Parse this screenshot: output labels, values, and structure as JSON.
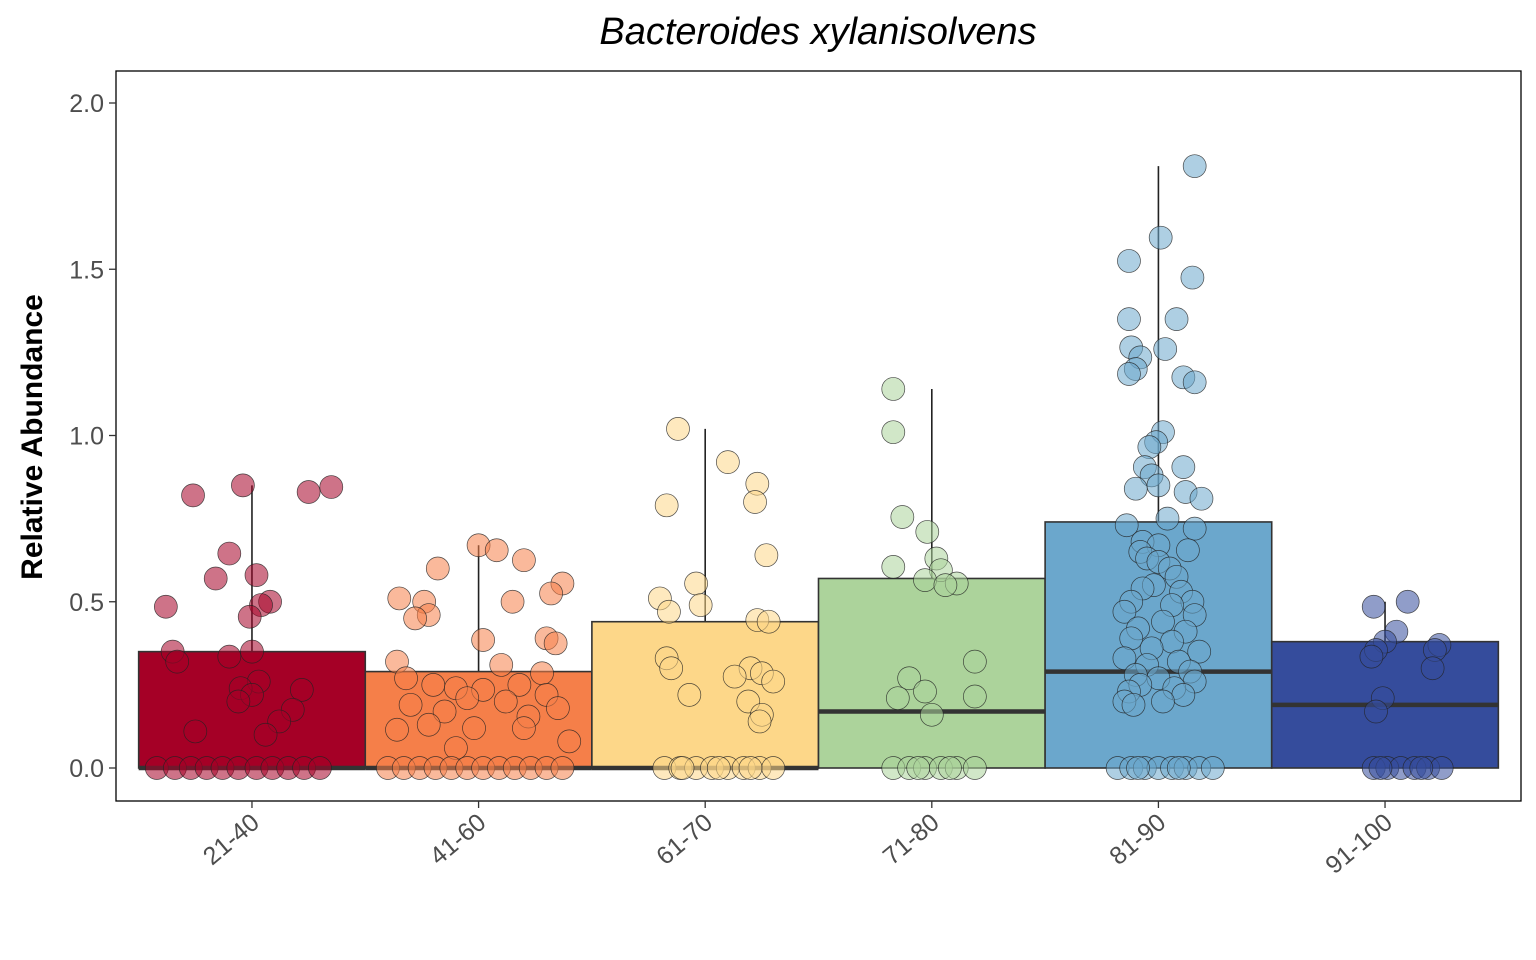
{
  "chart_data": {
    "type": "box",
    "title": "Bacteroides xylanisolvens",
    "xlabel": "",
    "ylabel": "Relative Abundance",
    "ylim": [
      -0.1,
      2.1
    ],
    "yticks": [
      "0.0",
      "0.5",
      "1.0",
      "1.5",
      "2.0"
    ],
    "categories": [
      "21-40",
      "41-60",
      "61-70",
      "71-80",
      "81-90",
      "91-100"
    ],
    "colors": [
      "#a50026",
      "#f57f49",
      "#fdd789",
      "#acd39b",
      "#6ba7cc",
      "#354c9c"
    ],
    "boxes": [
      {
        "q1": 0.0,
        "median": 0.0,
        "q3": 0.35,
        "whisker_low": 0.0,
        "whisker_high": 0.85
      },
      {
        "q1": 0.0,
        "median": 0.0,
        "q3": 0.29,
        "whisker_low": 0.0,
        "whisker_high": 0.67
      },
      {
        "q1": 0.0,
        "median": 0.0,
        "q3": 0.44,
        "whisker_low": 0.0,
        "whisker_high": 1.02
      },
      {
        "q1": 0.0,
        "median": 0.17,
        "q3": 0.57,
        "whisker_low": 0.0,
        "whisker_high": 1.14
      },
      {
        "q1": 0.0,
        "median": 0.29,
        "q3": 0.74,
        "whisker_low": 0.0,
        "whisker_high": 1.81
      },
      {
        "q1": 0.0,
        "median": 0.19,
        "q3": 0.38,
        "whisker_low": 0.0,
        "whisker_high": 0.5
      }
    ],
    "points": [
      [
        {
          "dx": -0.26,
          "y": 0.82
        },
        {
          "dx": -0.04,
          "y": 0.85
        },
        {
          "dx": 0.25,
          "y": 0.83
        },
        {
          "dx": 0.35,
          "y": 0.845
        },
        {
          "dx": -0.1,
          "y": 0.645
        },
        {
          "dx": -0.16,
          "y": 0.57
        },
        {
          "dx": 0.02,
          "y": 0.58
        },
        {
          "dx": -0.38,
          "y": 0.485
        },
        {
          "dx": 0.08,
          "y": 0.5
        },
        {
          "dx": 0.04,
          "y": 0.49
        },
        {
          "dx": -0.01,
          "y": 0.455
        },
        {
          "dx": -0.35,
          "y": 0.35
        },
        {
          "dx": 0.0,
          "y": 0.35
        },
        {
          "dx": -0.1,
          "y": 0.335
        },
        {
          "dx": -0.33,
          "y": 0.32
        },
        {
          "dx": 0.03,
          "y": 0.26
        },
        {
          "dx": -0.05,
          "y": 0.24
        },
        {
          "dx": 0.22,
          "y": 0.235
        },
        {
          "dx": 0.0,
          "y": 0.22
        },
        {
          "dx": -0.06,
          "y": 0.2
        },
        {
          "dx": 0.18,
          "y": 0.175
        },
        {
          "dx": 0.12,
          "y": 0.14
        },
        {
          "dx": -0.25,
          "y": 0.11
        },
        {
          "dx": 0.06,
          "y": 0.1
        },
        {
          "dx": -0.42,
          "y": 0.0
        },
        {
          "dx": -0.34,
          "y": 0.0
        },
        {
          "dx": -0.27,
          "y": 0.0
        },
        {
          "dx": -0.2,
          "y": 0.0
        },
        {
          "dx": -0.13,
          "y": 0.0
        },
        {
          "dx": -0.06,
          "y": 0.0
        },
        {
          "dx": 0.02,
          "y": 0.0
        },
        {
          "dx": 0.09,
          "y": 0.0
        },
        {
          "dx": 0.16,
          "y": 0.0
        },
        {
          "dx": 0.23,
          "y": 0.0
        },
        {
          "dx": 0.3,
          "y": 0.0
        }
      ],
      [
        {
          "dx": 0.0,
          "y": 0.67
        },
        {
          "dx": 0.08,
          "y": 0.655
        },
        {
          "dx": 0.2,
          "y": 0.625
        },
        {
          "dx": -0.18,
          "y": 0.6
        },
        {
          "dx": 0.37,
          "y": 0.555
        },
        {
          "dx": 0.32,
          "y": 0.525
        },
        {
          "dx": -0.35,
          "y": 0.51
        },
        {
          "dx": -0.24,
          "y": 0.5
        },
        {
          "dx": 0.15,
          "y": 0.5
        },
        {
          "dx": -0.22,
          "y": 0.46
        },
        {
          "dx": -0.28,
          "y": 0.45
        },
        {
          "dx": 0.3,
          "y": 0.39
        },
        {
          "dx": 0.02,
          "y": 0.385
        },
        {
          "dx": 0.34,
          "y": 0.375
        },
        {
          "dx": -0.36,
          "y": 0.32
        },
        {
          "dx": 0.1,
          "y": 0.31
        },
        {
          "dx": 0.28,
          "y": 0.285
        },
        {
          "dx": -0.32,
          "y": 0.27
        },
        {
          "dx": -0.2,
          "y": 0.25
        },
        {
          "dx": 0.18,
          "y": 0.25
        },
        {
          "dx": -0.1,
          "y": 0.24
        },
        {
          "dx": 0.02,
          "y": 0.235
        },
        {
          "dx": -0.05,
          "y": 0.21
        },
        {
          "dx": 0.3,
          "y": 0.22
        },
        {
          "dx": 0.12,
          "y": 0.2
        },
        {
          "dx": -0.3,
          "y": 0.19
        },
        {
          "dx": 0.35,
          "y": 0.18
        },
        {
          "dx": -0.15,
          "y": 0.17
        },
        {
          "dx": 0.22,
          "y": 0.155
        },
        {
          "dx": -0.22,
          "y": 0.13
        },
        {
          "dx": -0.02,
          "y": 0.12
        },
        {
          "dx": 0.2,
          "y": 0.12
        },
        {
          "dx": -0.36,
          "y": 0.115
        },
        {
          "dx": 0.4,
          "y": 0.08
        },
        {
          "dx": -0.1,
          "y": 0.06
        },
        {
          "dx": -0.4,
          "y": 0.0
        },
        {
          "dx": -0.33,
          "y": 0.0
        },
        {
          "dx": -0.26,
          "y": 0.0
        },
        {
          "dx": -0.19,
          "y": 0.0
        },
        {
          "dx": -0.12,
          "y": 0.0
        },
        {
          "dx": -0.05,
          "y": 0.0
        },
        {
          "dx": 0.02,
          "y": 0.0
        },
        {
          "dx": 0.09,
          "y": 0.0
        },
        {
          "dx": 0.16,
          "y": 0.0
        },
        {
          "dx": 0.23,
          "y": 0.0
        },
        {
          "dx": 0.3,
          "y": 0.0
        },
        {
          "dx": 0.37,
          "y": 0.0
        }
      ],
      [
        {
          "dx": -0.12,
          "y": 1.02
        },
        {
          "dx": 0.1,
          "y": 0.92
        },
        {
          "dx": 0.23,
          "y": 0.855
        },
        {
          "dx": 0.22,
          "y": 0.8
        },
        {
          "dx": -0.17,
          "y": 0.79
        },
        {
          "dx": 0.27,
          "y": 0.64
        },
        {
          "dx": -0.04,
          "y": 0.555
        },
        {
          "dx": -0.2,
          "y": 0.51
        },
        {
          "dx": -0.02,
          "y": 0.49
        },
        {
          "dx": -0.16,
          "y": 0.47
        },
        {
          "dx": 0.23,
          "y": 0.445
        },
        {
          "dx": 0.28,
          "y": 0.44
        },
        {
          "dx": -0.17,
          "y": 0.33
        },
        {
          "dx": -0.15,
          "y": 0.3
        },
        {
          "dx": 0.2,
          "y": 0.3
        },
        {
          "dx": 0.25,
          "y": 0.285
        },
        {
          "dx": 0.13,
          "y": 0.275
        },
        {
          "dx": 0.3,
          "y": 0.26
        },
        {
          "dx": -0.07,
          "y": 0.22
        },
        {
          "dx": 0.19,
          "y": 0.2
        },
        {
          "dx": 0.25,
          "y": 0.16
        },
        {
          "dx": 0.24,
          "y": 0.14
        },
        {
          "dx": -0.18,
          "y": 0.0
        },
        {
          "dx": -0.11,
          "y": 0.0
        },
        {
          "dx": -0.04,
          "y": 0.0
        },
        {
          "dx": 0.03,
          "y": 0.0
        },
        {
          "dx": 0.1,
          "y": 0.0
        },
        {
          "dx": 0.17,
          "y": 0.0
        },
        {
          "dx": 0.24,
          "y": 0.0
        },
        {
          "dx": 0.3,
          "y": 0.0
        },
        {
          "dx": -0.1,
          "y": 0.0
        },
        {
          "dx": 0.06,
          "y": 0.0
        },
        {
          "dx": 0.2,
          "y": 0.0
        }
      ],
      [
        {
          "dx": -0.17,
          "y": 1.14
        },
        {
          "dx": -0.17,
          "y": 1.01
        },
        {
          "dx": -0.13,
          "y": 0.755
        },
        {
          "dx": -0.02,
          "y": 0.71
        },
        {
          "dx": 0.02,
          "y": 0.63
        },
        {
          "dx": -0.17,
          "y": 0.605
        },
        {
          "dx": 0.04,
          "y": 0.595
        },
        {
          "dx": -0.03,
          "y": 0.565
        },
        {
          "dx": 0.11,
          "y": 0.555
        },
        {
          "dx": 0.06,
          "y": 0.55
        },
        {
          "dx": 0.19,
          "y": 0.32
        },
        {
          "dx": -0.1,
          "y": 0.27
        },
        {
          "dx": -0.03,
          "y": 0.23
        },
        {
          "dx": 0.19,
          "y": 0.215
        },
        {
          "dx": -0.15,
          "y": 0.21
        },
        {
          "dx": 0.0,
          "y": 0.16
        },
        {
          "dx": -0.17,
          "y": 0.0
        },
        {
          "dx": -0.1,
          "y": 0.0
        },
        {
          "dx": -0.03,
          "y": 0.0
        },
        {
          "dx": 0.04,
          "y": 0.0
        },
        {
          "dx": 0.11,
          "y": 0.0
        },
        {
          "dx": 0.19,
          "y": 0.0
        },
        {
          "dx": -0.06,
          "y": 0.0
        },
        {
          "dx": 0.08,
          "y": 0.0
        }
      ],
      [
        {
          "dx": 0.16,
          "y": 1.81
        },
        {
          "dx": 0.01,
          "y": 1.595
        },
        {
          "dx": -0.13,
          "y": 1.525
        },
        {
          "dx": 0.15,
          "y": 1.475
        },
        {
          "dx": -0.13,
          "y": 1.35
        },
        {
          "dx": 0.08,
          "y": 1.35
        },
        {
          "dx": -0.12,
          "y": 1.265
        },
        {
          "dx": 0.03,
          "y": 1.26
        },
        {
          "dx": -0.08,
          "y": 1.235
        },
        {
          "dx": -0.1,
          "y": 1.2
        },
        {
          "dx": -0.13,
          "y": 1.185
        },
        {
          "dx": 0.11,
          "y": 1.175
        },
        {
          "dx": 0.16,
          "y": 1.16
        },
        {
          "dx": 0.02,
          "y": 1.01
        },
        {
          "dx": -0.01,
          "y": 0.98
        },
        {
          "dx": -0.04,
          "y": 0.965
        },
        {
          "dx": 0.11,
          "y": 0.905
        },
        {
          "dx": -0.06,
          "y": 0.905
        },
        {
          "dx": -0.03,
          "y": 0.88
        },
        {
          "dx": 0.0,
          "y": 0.85
        },
        {
          "dx": -0.1,
          "y": 0.84
        },
        {
          "dx": 0.12,
          "y": 0.83
        },
        {
          "dx": 0.19,
          "y": 0.81
        },
        {
          "dx": 0.04,
          "y": 0.75
        },
        {
          "dx": -0.14,
          "y": 0.73
        },
        {
          "dx": 0.16,
          "y": 0.72
        },
        {
          "dx": -0.07,
          "y": 0.68
        },
        {
          "dx": 0.0,
          "y": 0.67
        },
        {
          "dx": -0.08,
          "y": 0.65
        },
        {
          "dx": 0.13,
          "y": 0.655
        },
        {
          "dx": -0.05,
          "y": 0.63
        },
        {
          "dx": 0.0,
          "y": 0.62
        },
        {
          "dx": 0.05,
          "y": 0.6
        },
        {
          "dx": 0.08,
          "y": 0.575
        },
        {
          "dx": -0.02,
          "y": 0.55
        },
        {
          "dx": -0.07,
          "y": 0.54
        },
        {
          "dx": 0.1,
          "y": 0.53
        },
        {
          "dx": 0.15,
          "y": 0.5
        },
        {
          "dx": -0.12,
          "y": 0.5
        },
        {
          "dx": 0.06,
          "y": 0.49
        },
        {
          "dx": -0.15,
          "y": 0.47
        },
        {
          "dx": 0.16,
          "y": 0.46
        },
        {
          "dx": 0.02,
          "y": 0.44
        },
        {
          "dx": -0.09,
          "y": 0.42
        },
        {
          "dx": 0.12,
          "y": 0.41
        },
        {
          "dx": -0.12,
          "y": 0.39
        },
        {
          "dx": 0.06,
          "y": 0.38
        },
        {
          "dx": -0.03,
          "y": 0.36
        },
        {
          "dx": 0.18,
          "y": 0.35
        },
        {
          "dx": -0.15,
          "y": 0.33
        },
        {
          "dx": 0.09,
          "y": 0.32
        },
        {
          "dx": -0.05,
          "y": 0.31
        },
        {
          "dx": 0.14,
          "y": 0.29
        },
        {
          "dx": -0.1,
          "y": 0.28
        },
        {
          "dx": 0.0,
          "y": 0.27
        },
        {
          "dx": 0.16,
          "y": 0.26
        },
        {
          "dx": -0.08,
          "y": 0.25
        },
        {
          "dx": 0.07,
          "y": 0.24
        },
        {
          "dx": -0.13,
          "y": 0.23
        },
        {
          "dx": 0.11,
          "y": 0.22
        },
        {
          "dx": 0.02,
          "y": 0.2
        },
        {
          "dx": -0.15,
          "y": 0.2
        },
        {
          "dx": -0.11,
          "y": 0.19
        },
        {
          "dx": -0.18,
          "y": 0.0
        },
        {
          "dx": -0.12,
          "y": 0.0
        },
        {
          "dx": -0.06,
          "y": 0.0
        },
        {
          "dx": 0.0,
          "y": 0.0
        },
        {
          "dx": 0.06,
          "y": 0.0
        },
        {
          "dx": 0.12,
          "y": 0.0
        },
        {
          "dx": 0.18,
          "y": 0.0
        },
        {
          "dx": 0.24,
          "y": 0.0
        },
        {
          "dx": -0.09,
          "y": 0.0
        },
        {
          "dx": 0.09,
          "y": 0.0
        }
      ],
      [
        {
          "dx": 0.1,
          "y": 0.5
        },
        {
          "dx": -0.05,
          "y": 0.485
        },
        {
          "dx": 0.05,
          "y": 0.41
        },
        {
          "dx": 0.0,
          "y": 0.38
        },
        {
          "dx": 0.24,
          "y": 0.37
        },
        {
          "dx": -0.04,
          "y": 0.355
        },
        {
          "dx": 0.22,
          "y": 0.355
        },
        {
          "dx": -0.06,
          "y": 0.335
        },
        {
          "dx": 0.21,
          "y": 0.3
        },
        {
          "dx": -0.01,
          "y": 0.21
        },
        {
          "dx": -0.04,
          "y": 0.17
        },
        {
          "dx": -0.05,
          "y": 0.0
        },
        {
          "dx": 0.01,
          "y": 0.0
        },
        {
          "dx": 0.07,
          "y": 0.0
        },
        {
          "dx": 0.13,
          "y": 0.0
        },
        {
          "dx": 0.19,
          "y": 0.0
        },
        {
          "dx": 0.25,
          "y": 0.0
        },
        {
          "dx": -0.02,
          "y": 0.0
        },
        {
          "dx": 0.16,
          "y": 0.0
        }
      ]
    ]
  }
}
